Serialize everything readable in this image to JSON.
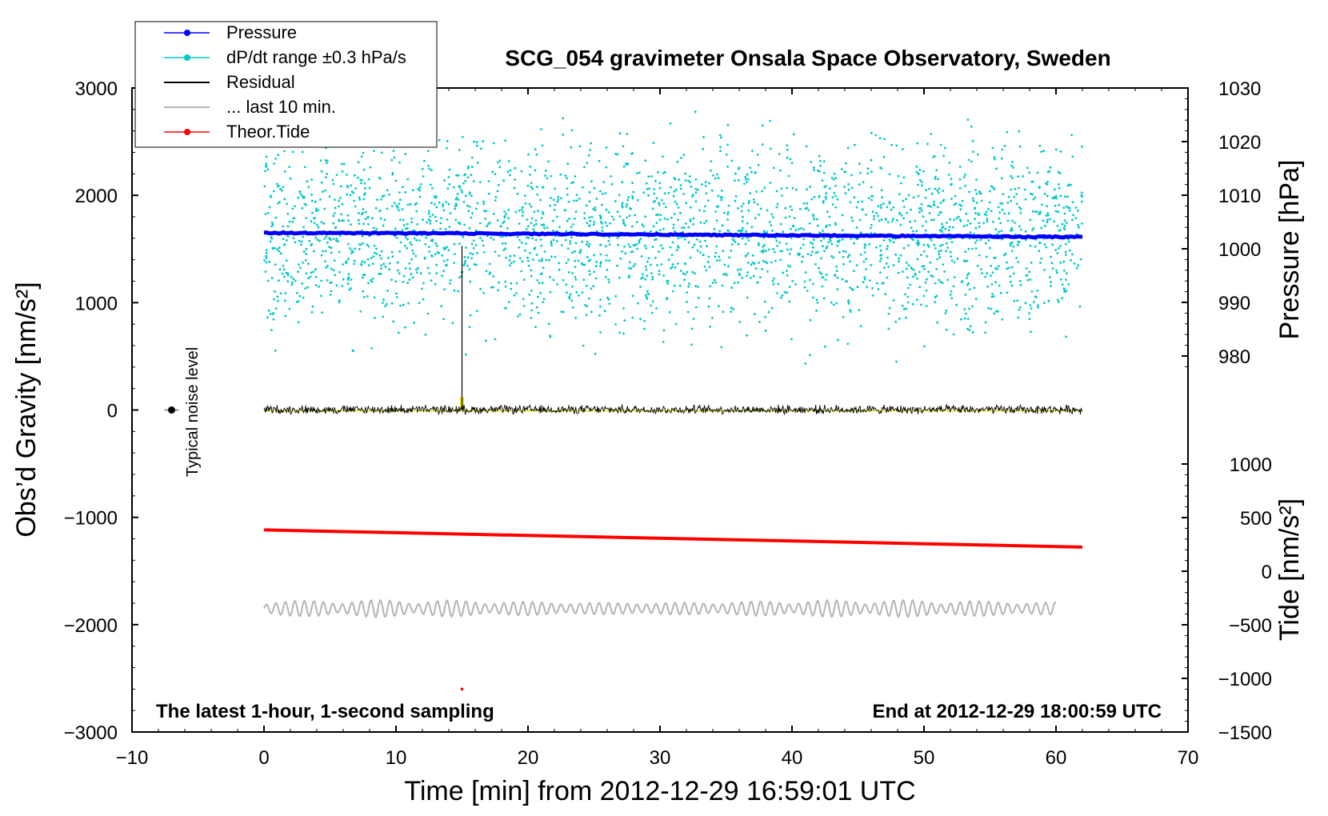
{
  "title": "SCG_054 gravimeter Onsala Space Observatory, Sweden",
  "note_left": "The latest 1-hour, 1-second sampling",
  "note_right": "End at 2012-12-29 18:00:59 UTC",
  "noise_label": "Typical noise level",
  "colors": {
    "pressure": "#0000ff",
    "dpdt": "#00c8c8",
    "residual": "#000000",
    "last10": "#b4b4b4",
    "tide": "#ff0000",
    "yellow": "#e6e600"
  },
  "chart_data": {
    "type": "scatter",
    "xlabel": "Time [min] from 2012-12-29 16:59:01 UTC",
    "ylabel_left": "Obs’d Gravity [nm/s²]",
    "ylabel_right_top": "Pressure [hPa]",
    "ylabel_right_bottom": "Tide [nm/s²]",
    "xlim": [
      -10,
      70
    ],
    "ylim": [
      -3000,
      3000
    ],
    "pressure_lim": [
      970,
      1030
    ],
    "tide_lim": [
      -1500,
      1000
    ],
    "xticks": [
      -10,
      0,
      10,
      20,
      30,
      40,
      50,
      60,
      70
    ],
    "xtick_labels": [
      "−10",
      "0",
      "10",
      "20",
      "30",
      "40",
      "50",
      "60",
      "70"
    ],
    "yticks": [
      -3000,
      -2000,
      -1000,
      0,
      1000,
      2000,
      3000
    ],
    "ytick_labels": [
      "−3000",
      "−2000",
      "−1000",
      "0",
      "1000",
      "2000",
      "3000"
    ],
    "pressure_ticks": [
      980,
      990,
      1000,
      1010,
      1020,
      1030
    ],
    "pressure_tick_labels": [
      "980",
      "990",
      "1000",
      "1010",
      "1020",
      "1030"
    ],
    "tide_ticks": [
      -1500,
      -1000,
      -500,
      0,
      500,
      1000
    ],
    "tide_tick_labels": [
      "−1500",
      "−1000",
      "−500",
      "0",
      "500",
      "1000"
    ],
    "legend": {
      "placement": "top-left",
      "entries": [
        "Pressure",
        "dP/dt range ±0.3 hPa/s",
        "Residual",
        "... last 10 min.",
        "Theor.Tide"
      ]
    },
    "series": [
      {
        "name": "Pressure",
        "axis": "pressure",
        "x": [
          0,
          20,
          40,
          62
        ],
        "values": [
          1003.0,
          1002.8,
          1002.5,
          1002.2
        ]
      },
      {
        "name": "dP/dt range ±0.3 hPa/s",
        "axis": "gravity",
        "x_range": [
          0,
          62
        ],
        "values_range": [
          100,
          2900
        ]
      },
      {
        "name": "Residual",
        "axis": "gravity",
        "x": [
          0,
          62
        ],
        "values": [
          0,
          0
        ],
        "amplitude": 60,
        "spike": {
          "x": 15,
          "values": [
            0,
            1530
          ]
        }
      },
      {
        "name": "... last 10 min.",
        "axis": "gravity",
        "x": [
          0,
          60
        ],
        "values": [
          -1850,
          -1850
        ],
        "amplitude": 80
      },
      {
        "name": "Theor.Tide",
        "axis": "tide",
        "x": [
          0,
          62
        ],
        "values": [
          385,
          225
        ]
      }
    ],
    "noise_marker": {
      "x": -7,
      "y": 0
    }
  }
}
